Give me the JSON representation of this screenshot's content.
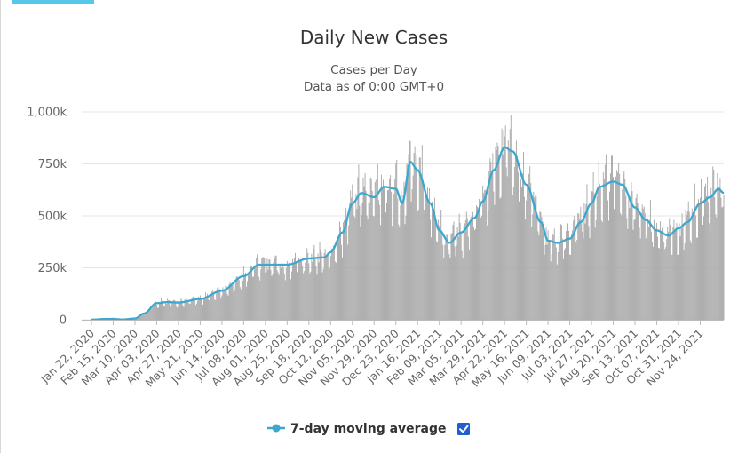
{
  "header": {
    "title": "Daily New Cases",
    "subtitle_line1": "Cases per Day",
    "subtitle_line2": "Data as of 0:00 GMT+0"
  },
  "legend": {
    "series_label": "7-day moving average",
    "checkbox_checked": true
  },
  "colors": {
    "bars": "#a6a6a6",
    "average_line": "#3ca7cf",
    "grid": "#e6e6e6",
    "accent_tab": "#56c7e8",
    "checkbox": "#1f5fd1"
  },
  "chart_data": {
    "type": "bar",
    "title": "Daily New Cases",
    "subtitle": "Cases per Day",
    "ylim": [
      0,
      1000000
    ],
    "yticks": [
      0,
      250000,
      500000,
      750000,
      1000000
    ],
    "ytick_labels": [
      "0",
      "250k",
      "500k",
      "750k",
      "1,000k"
    ],
    "start_date": "2020-01-22",
    "end_date": "2021-12-20",
    "xtick_labels": [
      "Jan 22, 2020",
      "Feb 15, 2020",
      "Mar 10, 2020",
      "Apr 03, 2020",
      "Apr 27, 2020",
      "May 21, 2020",
      "Jun 14, 2020",
      "Jul 08, 2020",
      "Aug 01, 2020",
      "Aug 25, 2020",
      "Sep 18, 2020",
      "Oct 12, 2020",
      "Nov 05, 2020",
      "Nov 29, 2020",
      "Dec 23, 2020",
      "Jan 16, 2021",
      "Feb 09, 2021",
      "Mar 05, 2021",
      "Mar 29, 2021",
      "Apr 22, 2021",
      "May 16, 2021",
      "Jun 09, 2021",
      "Jul 03, 2021",
      "Jul 27, 2021",
      "Aug 20, 2021",
      "Sep 13, 2021",
      "Oct 07, 2021",
      "Oct 31, 2021",
      "Nov 24, 2021"
    ],
    "legend": [
      "7-day moving average"
    ],
    "grid": true,
    "series": [
      {
        "name": "Daily New Cases",
        "type": "bar",
        "points": [
          [
            "2020-01-22",
            600
          ],
          [
            "2020-02-05",
            3500
          ],
          [
            "2020-02-15",
            4000
          ],
          [
            "2020-02-25",
            1200
          ],
          [
            "2020-03-10",
            6000
          ],
          [
            "2020-03-20",
            30000
          ],
          [
            "2020-04-03",
            80000
          ],
          [
            "2020-04-15",
            85000
          ],
          [
            "2020-04-27",
            83000
          ],
          [
            "2020-05-21",
            100000
          ],
          [
            "2020-06-14",
            140000
          ],
          [
            "2020-07-08",
            210000
          ],
          [
            "2020-07-25",
            265000
          ],
          [
            "2020-08-10",
            265000
          ],
          [
            "2020-08-25",
            265000
          ],
          [
            "2020-09-18",
            295000
          ],
          [
            "2020-10-05",
            300000
          ],
          [
            "2020-10-12",
            325000
          ],
          [
            "2020-10-25",
            420000
          ],
          [
            "2020-11-05",
            560000
          ],
          [
            "2020-11-15",
            610000
          ],
          [
            "2020-11-29",
            590000
          ],
          [
            "2020-12-10",
            640000
          ],
          [
            "2020-12-23",
            630000
          ],
          [
            "2020-12-30",
            560000
          ],
          [
            "2021-01-08",
            760000
          ],
          [
            "2021-01-16",
            720000
          ],
          [
            "2021-01-30",
            560000
          ],
          [
            "2021-02-09",
            430000
          ],
          [
            "2021-02-20",
            370000
          ],
          [
            "2021-03-05",
            420000
          ],
          [
            "2021-03-20",
            490000
          ],
          [
            "2021-03-29",
            570000
          ],
          [
            "2021-04-10",
            720000
          ],
          [
            "2021-04-22",
            830000
          ],
          [
            "2021-05-01",
            810000
          ],
          [
            "2021-05-16",
            650000
          ],
          [
            "2021-06-01",
            470000
          ],
          [
            "2021-06-09",
            380000
          ],
          [
            "2021-06-20",
            370000
          ],
          [
            "2021-07-03",
            390000
          ],
          [
            "2021-07-15",
            470000
          ],
          [
            "2021-07-27",
            560000
          ],
          [
            "2021-08-05",
            640000
          ],
          [
            "2021-08-20",
            665000
          ],
          [
            "2021-08-30",
            650000
          ],
          [
            "2021-09-13",
            540000
          ],
          [
            "2021-09-25",
            480000
          ],
          [
            "2021-10-07",
            430000
          ],
          [
            "2021-10-20",
            405000
          ],
          [
            "2021-10-31",
            440000
          ],
          [
            "2021-11-10",
            470000
          ],
          [
            "2021-11-24",
            560000
          ],
          [
            "2021-12-05",
            590000
          ],
          [
            "2021-12-14",
            630000
          ],
          [
            "2021-12-20",
            610000
          ]
        ]
      },
      {
        "name": "7-day moving average",
        "type": "line",
        "points": [
          [
            "2020-01-22",
            600
          ],
          [
            "2020-02-05",
            3500
          ],
          [
            "2020-02-15",
            4000
          ],
          [
            "2020-02-25",
            1200
          ],
          [
            "2020-03-10",
            6000
          ],
          [
            "2020-03-20",
            30000
          ],
          [
            "2020-04-03",
            80000
          ],
          [
            "2020-04-15",
            85000
          ],
          [
            "2020-04-27",
            83000
          ],
          [
            "2020-05-21",
            100000
          ],
          [
            "2020-06-14",
            140000
          ],
          [
            "2020-07-08",
            210000
          ],
          [
            "2020-07-25",
            265000
          ],
          [
            "2020-08-10",
            265000
          ],
          [
            "2020-08-25",
            265000
          ],
          [
            "2020-09-18",
            295000
          ],
          [
            "2020-10-05",
            300000
          ],
          [
            "2020-10-12",
            325000
          ],
          [
            "2020-10-25",
            420000
          ],
          [
            "2020-11-05",
            560000
          ],
          [
            "2020-11-15",
            610000
          ],
          [
            "2020-11-29",
            590000
          ],
          [
            "2020-12-10",
            640000
          ],
          [
            "2020-12-23",
            630000
          ],
          [
            "2020-12-30",
            560000
          ],
          [
            "2021-01-08",
            760000
          ],
          [
            "2021-01-16",
            720000
          ],
          [
            "2021-01-30",
            560000
          ],
          [
            "2021-02-09",
            430000
          ],
          [
            "2021-02-20",
            370000
          ],
          [
            "2021-03-05",
            420000
          ],
          [
            "2021-03-20",
            490000
          ],
          [
            "2021-03-29",
            570000
          ],
          [
            "2021-04-10",
            720000
          ],
          [
            "2021-04-22",
            830000
          ],
          [
            "2021-05-01",
            810000
          ],
          [
            "2021-05-16",
            650000
          ],
          [
            "2021-06-01",
            470000
          ],
          [
            "2021-06-09",
            380000
          ],
          [
            "2021-06-20",
            370000
          ],
          [
            "2021-07-03",
            390000
          ],
          [
            "2021-07-15",
            470000
          ],
          [
            "2021-07-27",
            560000
          ],
          [
            "2021-08-05",
            640000
          ],
          [
            "2021-08-20",
            665000
          ],
          [
            "2021-08-30",
            650000
          ],
          [
            "2021-09-13",
            540000
          ],
          [
            "2021-09-25",
            480000
          ],
          [
            "2021-10-07",
            430000
          ],
          [
            "2021-10-20",
            405000
          ],
          [
            "2021-10-31",
            440000
          ],
          [
            "2021-11-10",
            470000
          ],
          [
            "2021-11-24",
            560000
          ],
          [
            "2021-12-05",
            590000
          ],
          [
            "2021-12-14",
            630000
          ],
          [
            "2021-12-20",
            610000
          ]
        ]
      }
    ]
  }
}
